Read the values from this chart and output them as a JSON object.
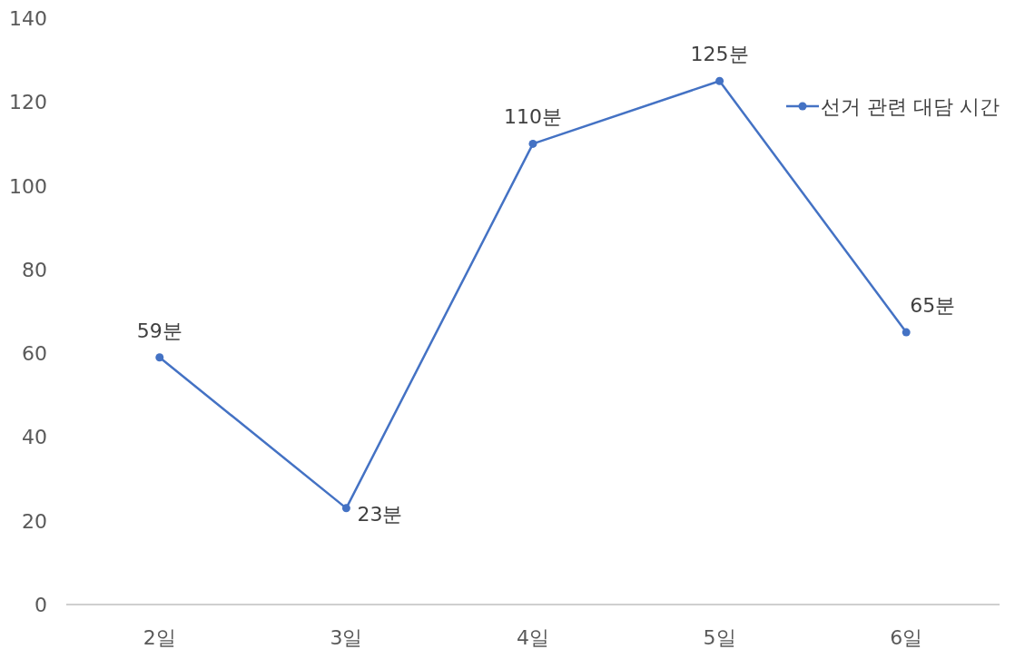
{
  "chart_data": {
    "type": "line",
    "categories": [
      "2일",
      "3일",
      "4일",
      "5일",
      "6일"
    ],
    "series": [
      {
        "name": "선거 관련 대담 시간",
        "color": "#4472c4",
        "values": [
          59,
          23,
          110,
          125,
          65
        ],
        "value_labels": [
          "59분",
          "23분",
          "110분",
          "125분",
          "65분"
        ]
      }
    ],
    "ylim": [
      0,
      140
    ],
    "yticks": [
      0,
      20,
      40,
      60,
      80,
      100,
      120,
      140
    ],
    "grid": false,
    "legend": "top right",
    "marker": "circle",
    "line_style": "solid"
  }
}
